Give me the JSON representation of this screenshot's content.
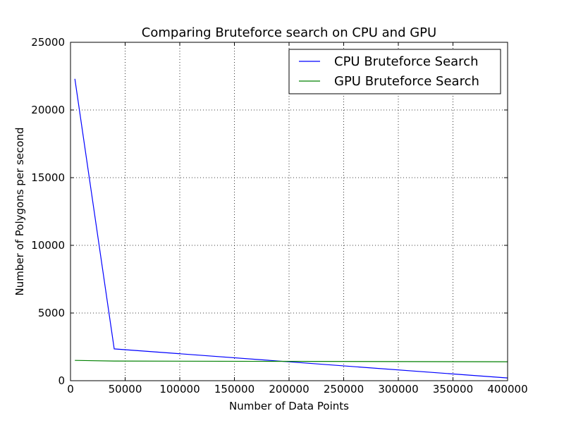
{
  "chart_data": {
    "type": "line",
    "title": "Comparing Bruteforce search on CPU and GPU",
    "xlabel": "Number of Data Points",
    "ylabel": "Number of Polygons per second",
    "xlim": [
      0,
      400000
    ],
    "ylim": [
      0,
      25000
    ],
    "x_ticks": [
      0,
      50000,
      100000,
      150000,
      200000,
      250000,
      300000,
      350000,
      400000
    ],
    "y_ticks": [
      0,
      5000,
      10000,
      15000,
      20000,
      25000
    ],
    "x_tick_labels": [
      "0",
      "50000",
      "100000",
      "150000",
      "200000",
      "250000",
      "300000",
      "350000",
      "400000"
    ],
    "y_tick_labels": [
      "0",
      "5000",
      "10000",
      "15000",
      "20000",
      "25000"
    ],
    "grid": true,
    "legend_position": "top-right",
    "series": [
      {
        "name": "CPU Bruteforce Search",
        "color": "#0000ff",
        "x": [
          4000,
          40000,
          400000
        ],
        "y": [
          22300,
          2350,
          200
        ]
      },
      {
        "name": "GPU Bruteforce Search",
        "color": "#008000",
        "x": [
          4000,
          40000,
          400000
        ],
        "y": [
          1500,
          1450,
          1400
        ]
      }
    ]
  }
}
